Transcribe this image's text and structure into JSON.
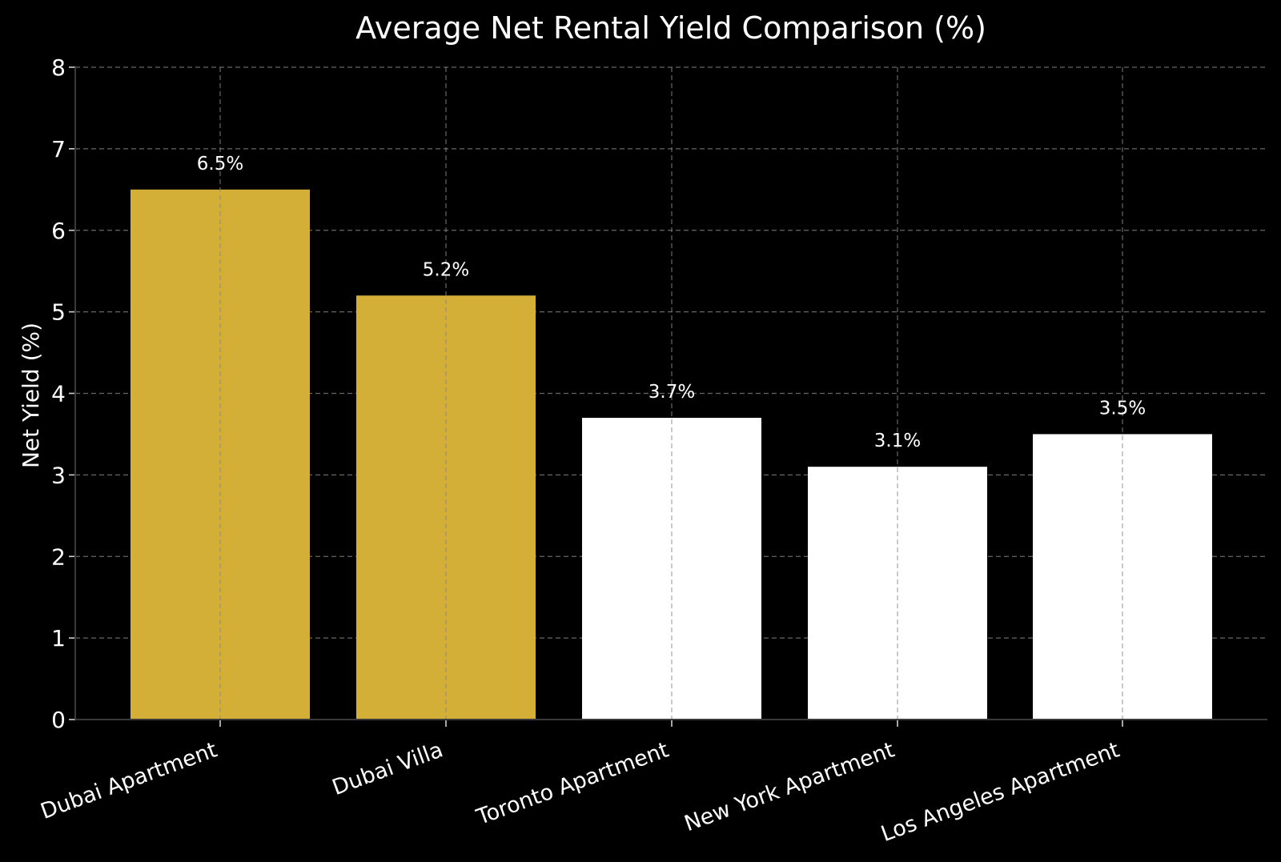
{
  "chart_data": {
    "type": "bar",
    "title": "Average Net Rental Yield Comparison (%)",
    "xlabel": "",
    "ylabel": "Net Yield (%)",
    "ylim": [
      0,
      8
    ],
    "yticks": [
      "0",
      "1",
      "2",
      "3",
      "4",
      "5",
      "6",
      "7",
      "8"
    ],
    "grid": true,
    "categories": [
      "Dubai Apartment",
      "Dubai Villa",
      "Toronto Apartment",
      "New York Apartment",
      "Los Angeles Apartment"
    ],
    "values": [
      6.5,
      5.2,
      3.7,
      3.1,
      3.5
    ],
    "data_labels": [
      "6.5%",
      "5.2%",
      "3.7%",
      "3.1%",
      "3.5%"
    ],
    "colors": [
      "#d4af37",
      "#d4af37",
      "#ffffff",
      "#ffffff",
      "#ffffff"
    ],
    "background": "#000000"
  }
}
